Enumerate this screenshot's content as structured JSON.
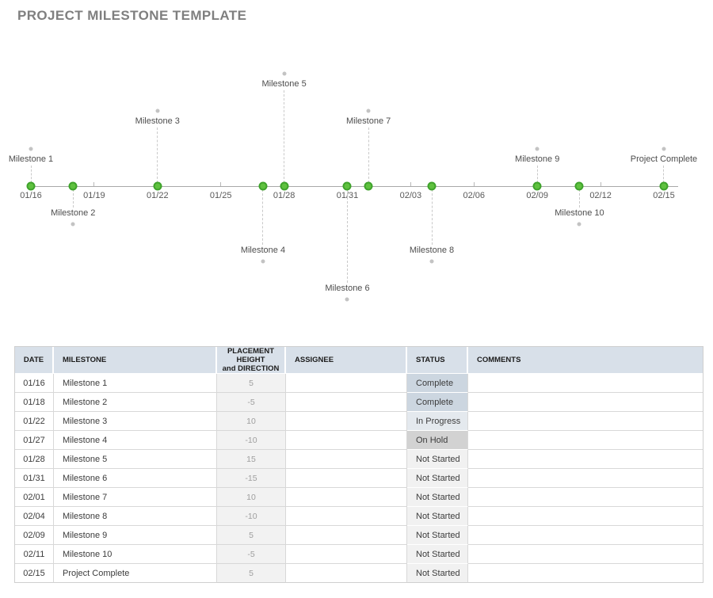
{
  "page": {
    "title": "PROJECT MILESTONE TEMPLATE"
  },
  "colors": {
    "milestone_dot_fill": "#5fc13f",
    "milestone_dot_border": "#3fa32c",
    "table_header_bg": "#d8e0e9",
    "status": {
      "Complete": "#ccd6e0",
      "In Progress": "#e4e9ee",
      "On Hold": "#d2d2d2",
      "Not Started": "#f1f1f1"
    }
  },
  "chart_data": [
    {
      "type": "scatter",
      "subtype": "milestone-timeline",
      "title": "",
      "x_axis": {
        "start": "01/16",
        "end": "02/15",
        "interval_days": 3,
        "tick_labels": [
          "01/16",
          "01/19",
          "01/22",
          "01/25",
          "01/28",
          "01/31",
          "02/03",
          "02/06",
          "02/09",
          "02/12",
          "02/15"
        ]
      },
      "y_axis": {
        "label": "placement height and direction",
        "range": [
          -15,
          15
        ]
      },
      "points": [
        {
          "label": "Milestone 1",
          "date": "01/16",
          "height": 5
        },
        {
          "label": "Milestone 2",
          "date": "01/18",
          "height": -5
        },
        {
          "label": "Milestone 3",
          "date": "01/22",
          "height": 10
        },
        {
          "label": "Milestone 4",
          "date": "01/27",
          "height": -10
        },
        {
          "label": "Milestone 5",
          "date": "01/28",
          "height": 15
        },
        {
          "label": "Milestone 6",
          "date": "01/31",
          "height": -15
        },
        {
          "label": "Milestone 7",
          "date": "02/01",
          "height": 10
        },
        {
          "label": "Milestone 8",
          "date": "02/04",
          "height": -10
        },
        {
          "label": "Milestone 9",
          "date": "02/09",
          "height": 5
        },
        {
          "label": "Milestone 10",
          "date": "02/11",
          "height": -5
        },
        {
          "label": "Project Complete",
          "date": "02/15",
          "height": 5
        }
      ]
    },
    {
      "type": "table",
      "columns": [
        "DATE",
        "MILESTONE",
        "PLACEMENT HEIGHT and DIRECTION",
        "ASSIGNEE",
        "STATUS",
        "COMMENTS"
      ],
      "rows": [
        {
          "date": "01/16",
          "milestone": "Milestone 1",
          "placement": "5",
          "assignee": "",
          "status": "Complete",
          "comments": ""
        },
        {
          "date": "01/18",
          "milestone": "Milestone 2",
          "placement": "-5",
          "assignee": "",
          "status": "Complete",
          "comments": ""
        },
        {
          "date": "01/22",
          "milestone": "Milestone 3",
          "placement": "10",
          "assignee": "",
          "status": "In Progress",
          "comments": ""
        },
        {
          "date": "01/27",
          "milestone": "Milestone 4",
          "placement": "-10",
          "assignee": "",
          "status": "On Hold",
          "comments": ""
        },
        {
          "date": "01/28",
          "milestone": "Milestone 5",
          "placement": "15",
          "assignee": "",
          "status": "Not Started",
          "comments": ""
        },
        {
          "date": "01/31",
          "milestone": "Milestone 6",
          "placement": "-15",
          "assignee": "",
          "status": "Not Started",
          "comments": ""
        },
        {
          "date": "02/01",
          "milestone": "Milestone 7",
          "placement": "10",
          "assignee": "",
          "status": "Not Started",
          "comments": ""
        },
        {
          "date": "02/04",
          "milestone": "Milestone 8",
          "placement": "-10",
          "assignee": "",
          "status": "Not Started",
          "comments": ""
        },
        {
          "date": "02/09",
          "milestone": "Milestone 9",
          "placement": "5",
          "assignee": "",
          "status": "Not Started",
          "comments": ""
        },
        {
          "date": "02/11",
          "milestone": "Milestone 10",
          "placement": "-5",
          "assignee": "",
          "status": "Not Started",
          "comments": ""
        },
        {
          "date": "02/15",
          "milestone": "Project Complete",
          "placement": "5",
          "assignee": "",
          "status": "Not Started",
          "comments": ""
        }
      ]
    }
  ]
}
